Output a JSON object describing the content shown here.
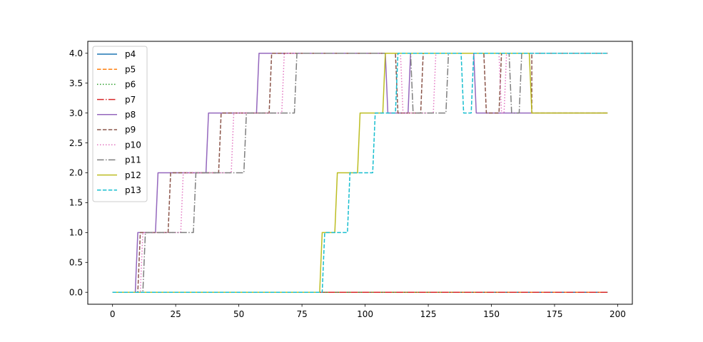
{
  "chart_data": {
    "type": "line",
    "title": "",
    "xlabel": "",
    "ylabel": "",
    "xlim": [
      -9.8,
      205.8
    ],
    "ylim": [
      -0.2,
      4.2
    ],
    "xticks": [
      0,
      25,
      50,
      75,
      100,
      125,
      150,
      175,
      200
    ],
    "yticks": [
      0.0,
      0.5,
      1.0,
      1.5,
      2.0,
      2.5,
      3.0,
      3.5,
      4.0
    ],
    "xtick_labels": [
      "0",
      "25",
      "50",
      "75",
      "100",
      "125",
      "150",
      "175",
      "200"
    ],
    "ytick_labels": [
      "0.0",
      "0.5",
      "1.0",
      "1.5",
      "2.0",
      "2.5",
      "3.0",
      "3.5",
      "4.0"
    ],
    "grid": false,
    "legend_position": "upper-left",
    "series": [
      {
        "name": "p4",
        "color": "#1f77b4",
        "dash": "solid",
        "points": [
          [
            0,
            0
          ],
          [
            196,
            0
          ]
        ]
      },
      {
        "name": "p5",
        "color": "#ff7f0e",
        "dash": "dashed",
        "points": [
          [
            0,
            0
          ],
          [
            196,
            0
          ]
        ]
      },
      {
        "name": "p6",
        "color": "#2ca02c",
        "dash": "dotted",
        "points": [
          [
            0,
            0
          ],
          [
            196,
            0
          ]
        ]
      },
      {
        "name": "p7",
        "color": "#d62728",
        "dash": "dashdot",
        "points": [
          [
            0,
            0
          ],
          [
            196,
            0
          ]
        ]
      },
      {
        "name": "p8",
        "color": "#9467bd",
        "dash": "solid",
        "points": [
          [
            0,
            0
          ],
          [
            9,
            0
          ],
          [
            10,
            1
          ],
          [
            17,
            1
          ],
          [
            18,
            2
          ],
          [
            37,
            2
          ],
          [
            38,
            3
          ],
          [
            57,
            3
          ],
          [
            58,
            4
          ],
          [
            108,
            4
          ],
          [
            109,
            3
          ],
          [
            117,
            3
          ],
          [
            118,
            4
          ],
          [
            143,
            4
          ],
          [
            144,
            3
          ],
          [
            196,
            3
          ]
        ]
      },
      {
        "name": "p9",
        "color": "#8c564b",
        "dash": "dashed",
        "points": [
          [
            0,
            0
          ],
          [
            10,
            0
          ],
          [
            11,
            1
          ],
          [
            22,
            1
          ],
          [
            23,
            2
          ],
          [
            42,
            2
          ],
          [
            43,
            3
          ],
          [
            62,
            3
          ],
          [
            63,
            4
          ],
          [
            112,
            4
          ],
          [
            113,
            3
          ],
          [
            122,
            3
          ],
          [
            123,
            4
          ],
          [
            147,
            4
          ],
          [
            148,
            3
          ],
          [
            153,
            3
          ],
          [
            154,
            4
          ],
          [
            166,
            4
          ],
          [
            166,
            3
          ],
          [
            196,
            3
          ]
        ]
      },
      {
        "name": "p10",
        "color": "#e377c2",
        "dash": "dotted",
        "points": [
          [
            0,
            0
          ],
          [
            11,
            0
          ],
          [
            12,
            1
          ],
          [
            27,
            1
          ],
          [
            28,
            2
          ],
          [
            47,
            2
          ],
          [
            48,
            3
          ],
          [
            67,
            3
          ],
          [
            68,
            4
          ],
          [
            114,
            4
          ],
          [
            115,
            3
          ],
          [
            127,
            3
          ],
          [
            128,
            4
          ],
          [
            153,
            4
          ],
          [
            154,
            3
          ],
          [
            155,
            3
          ],
          [
            156,
            4
          ],
          [
            196,
            4
          ]
        ]
      },
      {
        "name": "p11",
        "color": "#7f7f7f",
        "dash": "dashdot",
        "points": [
          [
            0,
            0
          ],
          [
            12,
            0
          ],
          [
            13,
            1
          ],
          [
            32,
            1
          ],
          [
            33,
            2
          ],
          [
            52,
            2
          ],
          [
            53,
            3
          ],
          [
            72,
            3
          ],
          [
            73,
            4
          ],
          [
            118,
            4
          ],
          [
            119,
            3
          ],
          [
            132,
            3
          ],
          [
            133,
            4
          ],
          [
            157,
            4
          ],
          [
            158,
            3
          ],
          [
            161,
            3
          ],
          [
            162,
            4
          ],
          [
            196,
            4
          ]
        ]
      },
      {
        "name": "p12",
        "color": "#bcbd22",
        "dash": "solid",
        "points": [
          [
            0,
            0
          ],
          [
            82,
            0
          ],
          [
            83,
            1
          ],
          [
            88,
            1
          ],
          [
            89,
            2
          ],
          [
            97,
            2
          ],
          [
            98,
            3
          ],
          [
            107,
            3
          ],
          [
            108,
            4
          ],
          [
            165,
            4
          ],
          [
            166,
            3
          ],
          [
            196,
            3
          ]
        ]
      },
      {
        "name": "p13",
        "color": "#17becf",
        "dash": "dashed",
        "points": [
          [
            0,
            0
          ],
          [
            83,
            0
          ],
          [
            84,
            1
          ],
          [
            93,
            1
          ],
          [
            94,
            2
          ],
          [
            103,
            2
          ],
          [
            104,
            3
          ],
          [
            112,
            3
          ],
          [
            113,
            4
          ],
          [
            138,
            4
          ],
          [
            139,
            3
          ],
          [
            142,
            3
          ],
          [
            143,
            4
          ],
          [
            196,
            4
          ]
        ]
      }
    ]
  }
}
